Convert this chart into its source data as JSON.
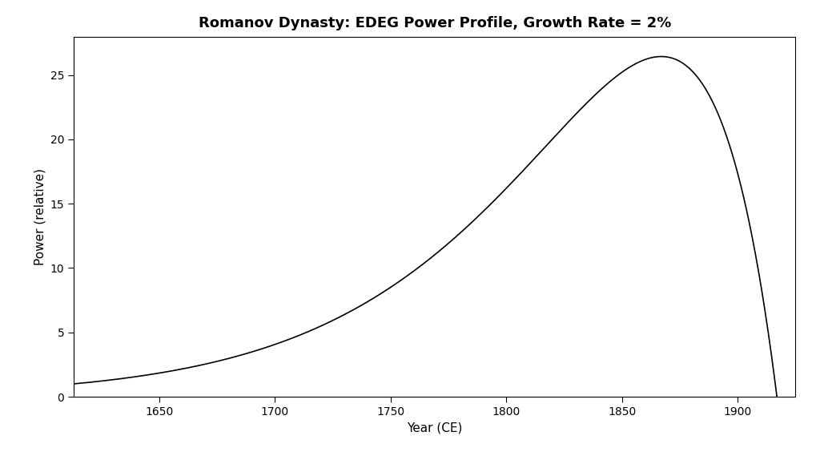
{
  "title": "Romanov Dynasty: EDEG Power Profile, Growth Rate = 2%",
  "xlabel": "Year (CE)",
  "ylabel": "Power (relative)",
  "start_year": 1613,
  "end_year": 1917,
  "growth_rate": 0.02,
  "m_exponent": 3.0,
  "background_color": "#ffffff",
  "line_color": "#000000",
  "line_width": 1.2,
  "xlim_left": 1613,
  "xlim_right": 1925,
  "ylim_bottom": 0,
  "ylim_top": 28,
  "xticks": [
    1650,
    1700,
    1750,
    1800,
    1850,
    1900
  ],
  "yticks": [
    0,
    5,
    10,
    15,
    20,
    25
  ],
  "title_fontsize": 13,
  "label_fontsize": 11,
  "tick_fontsize": 10
}
